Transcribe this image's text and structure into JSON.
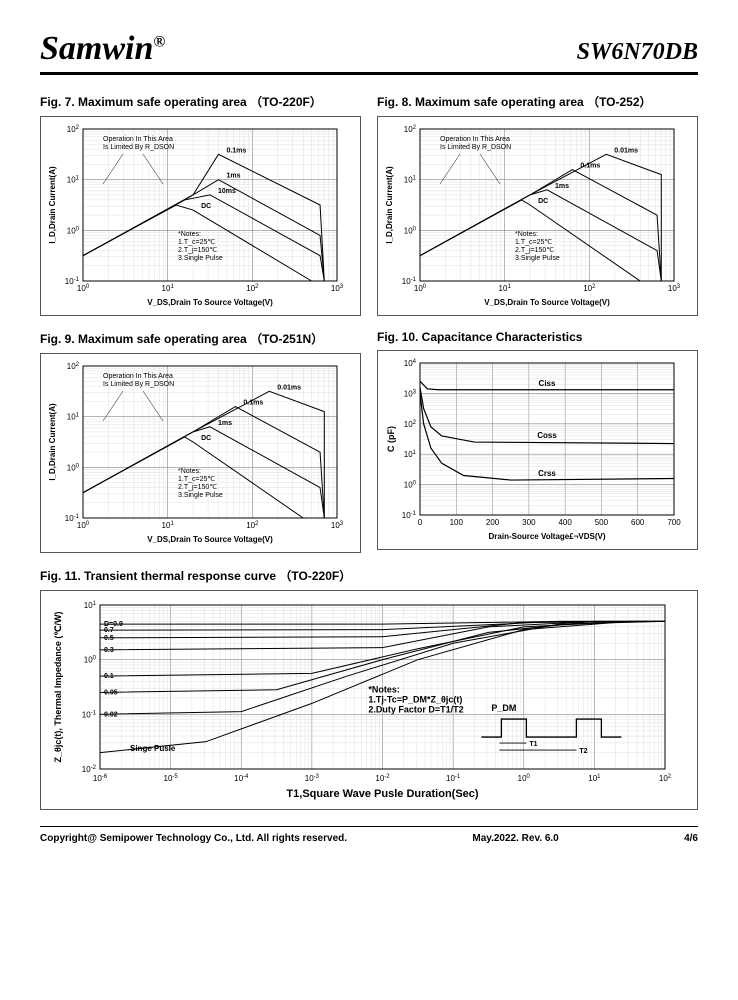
{
  "header": {
    "logo": "Samwin",
    "reg": "®",
    "part": "SW6N70DB"
  },
  "footer": {
    "copyright": "Copyright@ Semipower Technology Co., Ltd. All rights reserved.",
    "rev": "May.2022. Rev. 6.0",
    "page": "4/6"
  },
  "fig7": {
    "title": "Fig. 7. Maximum safe operating area （TO-220F）",
    "xlabel": "V_DS,Drain To Source Voltage(V)",
    "ylabel": "I_D,Drain Current(A)",
    "xlog": [
      0,
      3
    ],
    "ylog": [
      -1,
      2
    ],
    "xticks": [
      "10^0",
      "10^1",
      "10^2",
      "10^3"
    ],
    "yticks": [
      "10^-1",
      "10^0",
      "10^1",
      "10^2"
    ],
    "annotation": "Operation In This Area\nIs Limited By R_DSON",
    "notes": "*Notes:\n1.T_c=25℃\n2.T_j=150℃\n3.Single Pulse",
    "curves": [
      {
        "label": "0.1ms",
        "pts": [
          [
            0,
            -0.5
          ],
          [
            1.3,
            0.7
          ],
          [
            1.6,
            1.5
          ],
          [
            2.8,
            0.5
          ],
          [
            2.85,
            -1
          ]
        ]
      },
      {
        "label": "1ms",
        "pts": [
          [
            0,
            -0.5
          ],
          [
            1.2,
            0.6
          ],
          [
            1.6,
            1.0
          ],
          [
            2.8,
            -0.1
          ],
          [
            2.85,
            -1
          ]
        ]
      },
      {
        "label": "10ms",
        "pts": [
          [
            0,
            -0.5
          ],
          [
            1.2,
            0.6
          ],
          [
            1.5,
            0.7
          ],
          [
            2.8,
            -0.5
          ],
          [
            2.85,
            -1
          ]
        ]
      },
      {
        "label": "DC",
        "pts": [
          [
            0,
            -0.5
          ],
          [
            1.1,
            0.5
          ],
          [
            1.3,
            0.4
          ],
          [
            2.7,
            -1
          ]
        ]
      }
    ],
    "colors": {
      "grid": "#cccccc",
      "line": "#000000"
    }
  },
  "fig8": {
    "title": "Fig. 8. Maximum safe operating area （TO-252）",
    "xlabel": "V_DS,Drain To Source Voltage(V)",
    "ylabel": "I_D,Drain Current(A)",
    "xlog": [
      0,
      3
    ],
    "ylog": [
      -1,
      2
    ],
    "xticks": [
      "10^0",
      "10^1",
      "10^2",
      "10^3"
    ],
    "yticks": [
      "10^-1",
      "10^0",
      "10^1",
      "10^2"
    ],
    "annotation": "Operation In This Area\nIs Limited By R_DSON",
    "notes": "*Notes:\n1.T_c=25℃\n2.T_j=150℃\n3.Single Pulse",
    "curves": [
      {
        "label": "0.01ms",
        "pts": [
          [
            0,
            -0.5
          ],
          [
            1.3,
            0.7
          ],
          [
            2.2,
            1.5
          ],
          [
            2.85,
            1.1
          ],
          [
            2.85,
            -1
          ]
        ]
      },
      {
        "label": "0.1ms",
        "pts": [
          [
            0,
            -0.5
          ],
          [
            1.3,
            0.7
          ],
          [
            1.8,
            1.2
          ],
          [
            2.8,
            0.3
          ],
          [
            2.85,
            -1
          ]
        ]
      },
      {
        "label": "1ms",
        "pts": [
          [
            0,
            -0.5
          ],
          [
            1.3,
            0.7
          ],
          [
            1.5,
            0.8
          ],
          [
            2.8,
            -0.4
          ],
          [
            2.85,
            -1
          ]
        ]
      },
      {
        "label": "DC",
        "pts": [
          [
            0,
            -0.5
          ],
          [
            1.2,
            0.6
          ],
          [
            1.3,
            0.5
          ],
          [
            2.6,
            -1
          ]
        ]
      }
    ],
    "colors": {
      "grid": "#cccccc",
      "line": "#000000"
    }
  },
  "fig9": {
    "title": "Fig. 9. Maximum safe operating area （TO-251N）",
    "xlabel": "V_DS,Drain To Source Voltage(V)",
    "ylabel": "I_D,Drain Current(A)",
    "xlog": [
      0,
      3
    ],
    "ylog": [
      -1,
      2
    ],
    "xticks": [
      "10^0",
      "10^1",
      "10^2",
      "10^3"
    ],
    "yticks": [
      "10^-1",
      "10^0",
      "10^1",
      "10^2"
    ],
    "annotation": "Operation In This Area\nIs Limited By R_DSON",
    "notes": "*Notes:\n1.T_c=25℃\n2.T_j=150℃\n3.Single Pulse",
    "curves": [
      {
        "label": "0.01ms",
        "pts": [
          [
            0,
            -0.5
          ],
          [
            1.3,
            0.7
          ],
          [
            2.2,
            1.5
          ],
          [
            2.85,
            1.1
          ],
          [
            2.85,
            -1
          ]
        ]
      },
      {
        "label": "0.1ms",
        "pts": [
          [
            0,
            -0.5
          ],
          [
            1.3,
            0.7
          ],
          [
            1.8,
            1.2
          ],
          [
            2.8,
            0.3
          ],
          [
            2.85,
            -1
          ]
        ]
      },
      {
        "label": "1ms",
        "pts": [
          [
            0,
            -0.5
          ],
          [
            1.3,
            0.7
          ],
          [
            1.5,
            0.8
          ],
          [
            2.8,
            -0.4
          ],
          [
            2.85,
            -1
          ]
        ]
      },
      {
        "label": "DC",
        "pts": [
          [
            0,
            -0.5
          ],
          [
            1.2,
            0.6
          ],
          [
            1.3,
            0.5
          ],
          [
            2.6,
            -1
          ]
        ]
      }
    ],
    "colors": {
      "grid": "#cccccc",
      "line": "#000000"
    }
  },
  "fig10": {
    "title": "Fig. 10. Capacitance Characteristics",
    "xlabel": "Drain-Source Voltage£¬VDS(V)",
    "ylabel": "C (pF)",
    "xlin": [
      0,
      700
    ],
    "ylog": [
      -1,
      4
    ],
    "xticks": [
      0,
      100,
      200,
      300,
      400,
      500,
      600,
      700
    ],
    "yticks": [
      "10^-1",
      "10^0",
      "10^1",
      "10^2",
      "10^3",
      "10^4"
    ],
    "curves": [
      {
        "label": "Ciss",
        "pts": [
          [
            0,
            3.4
          ],
          [
            20,
            3.15
          ],
          [
            50,
            3.12
          ],
          [
            700,
            3.12
          ]
        ]
      },
      {
        "label": "Coss",
        "pts": [
          [
            0,
            3.2
          ],
          [
            10,
            2.5
          ],
          [
            30,
            1.9
          ],
          [
            60,
            1.6
          ],
          [
            150,
            1.4
          ],
          [
            700,
            1.35
          ]
        ]
      },
      {
        "label": "Crss",
        "pts": [
          [
            0,
            3.0
          ],
          [
            10,
            2.0
          ],
          [
            30,
            1.2
          ],
          [
            60,
            0.7
          ],
          [
            120,
            0.3
          ],
          [
            250,
            0.15
          ],
          [
            700,
            0.2
          ]
        ]
      }
    ],
    "colors": {
      "grid": "#cccccc",
      "line": "#000000"
    }
  },
  "fig11": {
    "title": "Fig. 11. Transient thermal response curve （TO-220F）",
    "xlabel": "T1,Square Wave Pusle Duration(Sec)",
    "ylabel": "Z_θjc(t), Thermal Impedance (℃/W)",
    "xlog": [
      -6,
      2
    ],
    "ylog": [
      -2,
      1
    ],
    "xticks": [
      "10^-6",
      "10^-5",
      "10^-4",
      "10^-3",
      "10^-2",
      "10^-1",
      "10^0",
      "10^1",
      "10^2"
    ],
    "yticks": [
      "10^-2",
      "10^-1",
      "10^0",
      "10^1"
    ],
    "notes": "*Notes:\n1.Tj-Tc=P_DM*Z_θjc(t)\n2.Duty Factor D=T1/T2",
    "duty_labels": [
      "D=0.9",
      "0.7",
      "0.5",
      "0.3",
      "0.1",
      "0.05",
      "0.02",
      "Singe Pusle"
    ],
    "curves": [
      {
        "pts": [
          [
            -6,
            0.65
          ],
          [
            -2,
            0.65
          ],
          [
            0.5,
            0.7
          ],
          [
            2,
            0.7
          ]
        ]
      },
      {
        "pts": [
          [
            -6,
            0.54
          ],
          [
            -2,
            0.55
          ],
          [
            0.5,
            0.7
          ],
          [
            2,
            0.7
          ]
        ]
      },
      {
        "pts": [
          [
            -6,
            0.4
          ],
          [
            -2,
            0.42
          ],
          [
            0,
            0.68
          ],
          [
            2,
            0.7
          ]
        ]
      },
      {
        "pts": [
          [
            -6,
            0.18
          ],
          [
            -2,
            0.22
          ],
          [
            -0.5,
            0.6
          ],
          [
            1,
            0.7
          ],
          [
            2,
            0.7
          ]
        ]
      },
      {
        "pts": [
          [
            -6,
            -0.3
          ],
          [
            -3,
            -0.25
          ],
          [
            -1.5,
            0.2
          ],
          [
            0,
            0.6
          ],
          [
            1.5,
            0.7
          ],
          [
            2,
            0.7
          ]
        ]
      },
      {
        "pts": [
          [
            -6,
            -0.6
          ],
          [
            -3.5,
            -0.55
          ],
          [
            -2,
            0.0
          ],
          [
            -0.5,
            0.5
          ],
          [
            1,
            0.7
          ],
          [
            2,
            0.7
          ]
        ]
      },
      {
        "pts": [
          [
            -6,
            -1.0
          ],
          [
            -4,
            -0.95
          ],
          [
            -2.5,
            -0.3
          ],
          [
            -1,
            0.3
          ],
          [
            0.5,
            0.65
          ],
          [
            2,
            0.7
          ]
        ]
      },
      {
        "pts": [
          [
            -6,
            -1.7
          ],
          [
            -4.5,
            -1.5
          ],
          [
            -3,
            -0.8
          ],
          [
            -1.5,
            0.0
          ],
          [
            0,
            0.55
          ],
          [
            1.5,
            0.7
          ],
          [
            2,
            0.7
          ]
        ]
      }
    ],
    "pulse_diagram": {
      "labels": [
        "P_DM",
        "T1",
        "T2"
      ]
    },
    "colors": {
      "grid": "#cccccc",
      "line": "#000000"
    }
  }
}
